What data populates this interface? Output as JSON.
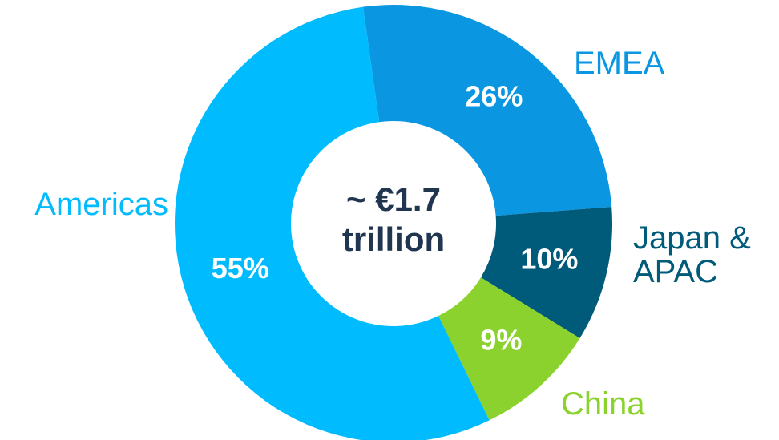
{
  "chart_data": {
    "type": "donut",
    "center_text": "~ €1.7 trillion",
    "categories": [
      "EMEA",
      "Japan & APAC",
      "China",
      "Americas"
    ],
    "values": [
      26,
      10,
      9,
      55
    ],
    "value_labels": [
      "26%",
      "10%",
      "9%",
      "55%"
    ],
    "colors": [
      "#0a96e0",
      "#005a7a",
      "#8bd22e",
      "#00bcff"
    ]
  }
}
